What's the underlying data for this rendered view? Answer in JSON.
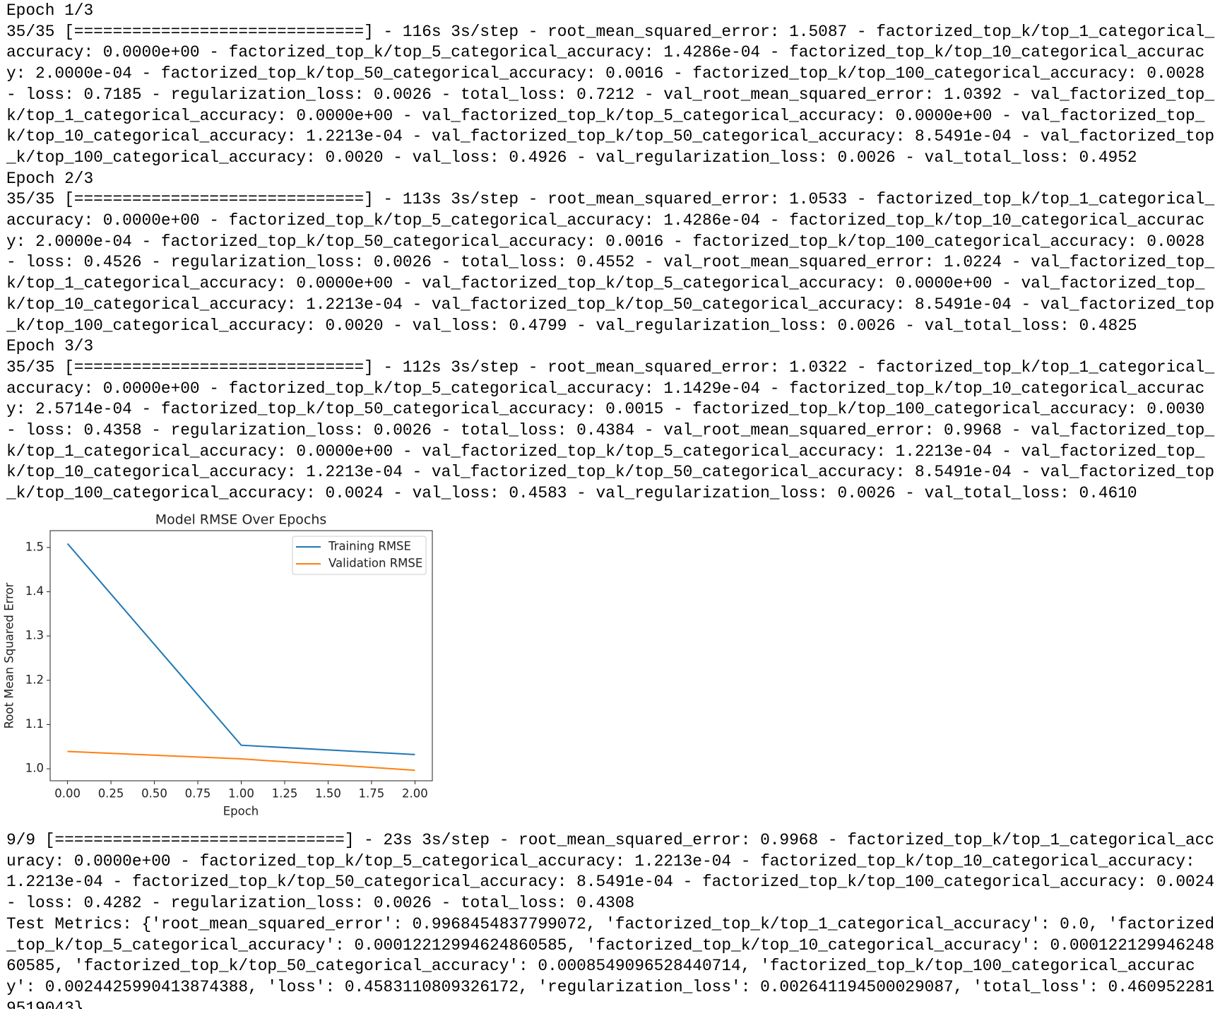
{
  "log_before": [
    "Epoch 1/3",
    "35/35 [==============================] - 116s 3s/step - root_mean_squared_error: 1.5087 - factorized_top_k/top_1_categorical_",
    "accuracy: 0.0000e+00 - factorized_top_k/top_5_categorical_accuracy: 1.4286e-04 - factorized_top_k/top_10_categorical_accurac",
    "y: 2.0000e-04 - factorized_top_k/top_50_categorical_accuracy: 0.0016 - factorized_top_k/top_100_categorical_accuracy: 0.0028",
    "- loss: 0.7185 - regularization_loss: 0.0026 - total_loss: 0.7212 - val_root_mean_squared_error: 1.0392 - val_factorized_top_",
    "k/top_1_categorical_accuracy: 0.0000e+00 - val_factorized_top_k/top_5_categorical_accuracy: 0.0000e+00 - val_factorized_top_",
    "k/top_10_categorical_accuracy: 1.2213e-04 - val_factorized_top_k/top_50_categorical_accuracy: 8.5491e-04 - val_factorized_top",
    "_k/top_100_categorical_accuracy: 0.0020 - val_loss: 0.4926 - val_regularization_loss: 0.0026 - val_total_loss: 0.4952",
    "Epoch 2/3",
    "35/35 [==============================] - 113s 3s/step - root_mean_squared_error: 1.0533 - factorized_top_k/top_1_categorical_",
    "accuracy: 0.0000e+00 - factorized_top_k/top_5_categorical_accuracy: 1.4286e-04 - factorized_top_k/top_10_categorical_accurac",
    "y: 2.0000e-04 - factorized_top_k/top_50_categorical_accuracy: 0.0016 - factorized_top_k/top_100_categorical_accuracy: 0.0028",
    "- loss: 0.4526 - regularization_loss: 0.0026 - total_loss: 0.4552 - val_root_mean_squared_error: 1.0224 - val_factorized_top_",
    "k/top_1_categorical_accuracy: 0.0000e+00 - val_factorized_top_k/top_5_categorical_accuracy: 0.0000e+00 - val_factorized_top_",
    "k/top_10_categorical_accuracy: 1.2213e-04 - val_factorized_top_k/top_50_categorical_accuracy: 8.5491e-04 - val_factorized_top",
    "_k/top_100_categorical_accuracy: 0.0020 - val_loss: 0.4799 - val_regularization_loss: 0.0026 - val_total_loss: 0.4825",
    "Epoch 3/3",
    "35/35 [==============================] - 112s 3s/step - root_mean_squared_error: 1.0322 - factorized_top_k/top_1_categorical_",
    "accuracy: 0.0000e+00 - factorized_top_k/top_5_categorical_accuracy: 1.1429e-04 - factorized_top_k/top_10_categorical_accurac",
    "y: 2.5714e-04 - factorized_top_k/top_50_categorical_accuracy: 0.0015 - factorized_top_k/top_100_categorical_accuracy: 0.0030",
    "- loss: 0.4358 - regularization_loss: 0.0026 - total_loss: 0.4384 - val_root_mean_squared_error: 0.9968 - val_factorized_top_",
    "k/top_1_categorical_accuracy: 0.0000e+00 - val_factorized_top_k/top_5_categorical_accuracy: 1.2213e-04 - val_factorized_top_",
    "k/top_10_categorical_accuracy: 1.2213e-04 - val_factorized_top_k/top_50_categorical_accuracy: 8.5491e-04 - val_factorized_top",
    "_k/top_100_categorical_accuracy: 0.0024 - val_loss: 0.4583 - val_regularization_loss: 0.0026 - val_total_loss: 0.4610"
  ],
  "chart_data": {
    "type": "line",
    "title": "Model RMSE Over Epochs",
    "x_label": "Epoch",
    "y_label": "Root Mean Squared Error",
    "x": [
      0,
      1,
      2
    ],
    "series": [
      {
        "name": "Training RMSE",
        "color": "#1f77b4",
        "values": [
          1.5087,
          1.0533,
          1.0322
        ]
      },
      {
        "name": "Validation RMSE",
        "color": "#ff7f0e",
        "values": [
          1.0392,
          1.0224,
          0.9968
        ]
      }
    ],
    "xlim": [
      -0.1,
      2.1
    ],
    "xticks": [
      {
        "value": 0,
        "label": "0.00"
      },
      {
        "value": 0.25,
        "label": "0.25"
      },
      {
        "value": 0.5,
        "label": "0.50"
      },
      {
        "value": 0.75,
        "label": "0.75"
      },
      {
        "value": 1,
        "label": "1.00"
      },
      {
        "value": 1.25,
        "label": "1.25"
      },
      {
        "value": 1.5,
        "label": "1.50"
      },
      {
        "value": 1.75,
        "label": "1.75"
      },
      {
        "value": 2,
        "label": "2.00"
      }
    ],
    "ylim": [
      0.973,
      1.538
    ],
    "yticks": [
      {
        "value": 1,
        "label": "1.0"
      },
      1.1,
      1.2,
      1.3,
      1.4,
      1.5
    ],
    "grid": false,
    "legend": "upper right"
  },
  "log_after": [
    "9/9 [==============================] - 23s 3s/step - root_mean_squared_error: 0.9968 - factorized_top_k/top_1_categorical_acc",
    "uracy: 0.0000e+00 - factorized_top_k/top_5_categorical_accuracy: 1.2213e-04 - factorized_top_k/top_10_categorical_accuracy:",
    "1.2213e-04 - factorized_top_k/top_50_categorical_accuracy: 8.5491e-04 - factorized_top_k/top_100_categorical_accuracy: 0.0024",
    "- loss: 0.4282 - regularization_loss: 0.0026 - total_loss: 0.4308",
    "Test Metrics: {'root_mean_squared_error': 0.9968454837799072, 'factorized_top_k/top_1_categorical_accuracy': 0.0, 'factorized",
    "_top_k/top_5_categorical_accuracy': 0.00012212994624860585, 'factorized_top_k/top_10_categorical_accuracy': 0.000122129946248",
    "60585, 'factorized_top_k/top_50_categorical_accuracy': 0.0008549096528440714, 'factorized_top_k/top_100_categorical_accurac",
    "y': 0.0024425990413874388, 'loss': 0.4583110809326172, 'regularization_loss': 0.002641194500029087, 'total_loss': 0.460952281",
    "9519043}"
  ]
}
